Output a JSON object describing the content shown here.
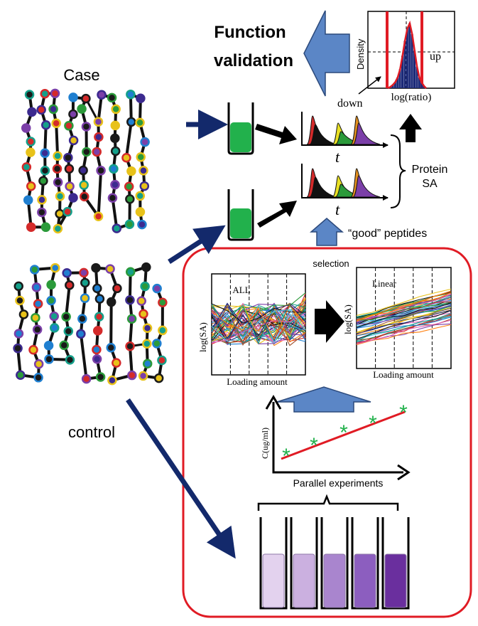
{
  "diagram": {
    "labels": {
      "function_line1": "Function",
      "function_line2": "validation",
      "case": "Case",
      "control": "control",
      "density": "Density",
      "up": "up",
      "log_ratio": "log(ratio)",
      "down": "down",
      "t_top": "t",
      "t_bottom": "t",
      "protein_line1": "Protein",
      "protein_line2": "SA",
      "good_peptides": "“good” peptides",
      "selection": "selection",
      "all": "ALL",
      "linear": "Linear",
      "log_sa_left": "log(SA)",
      "log_sa_right": "log(SA)",
      "loading_left": "Loading amount",
      "loading_right": "Loading amount",
      "c_ug_ml": "C(ug/ml)",
      "parallel": "Parallel experiments"
    },
    "colors": {
      "navy_arrow": "#13296b",
      "blue_arrow": "#5b86c6",
      "red_box": "#e01b24",
      "green_tube": "#22b14c",
      "asterisk": "#22b14c",
      "fit_line": "#e01b24"
    },
    "tube_shades": [
      "#e3d2ee",
      "#cbb0e0",
      "#a985ce",
      "#8c5ebf",
      "#6a2f9e"
    ]
  }
}
